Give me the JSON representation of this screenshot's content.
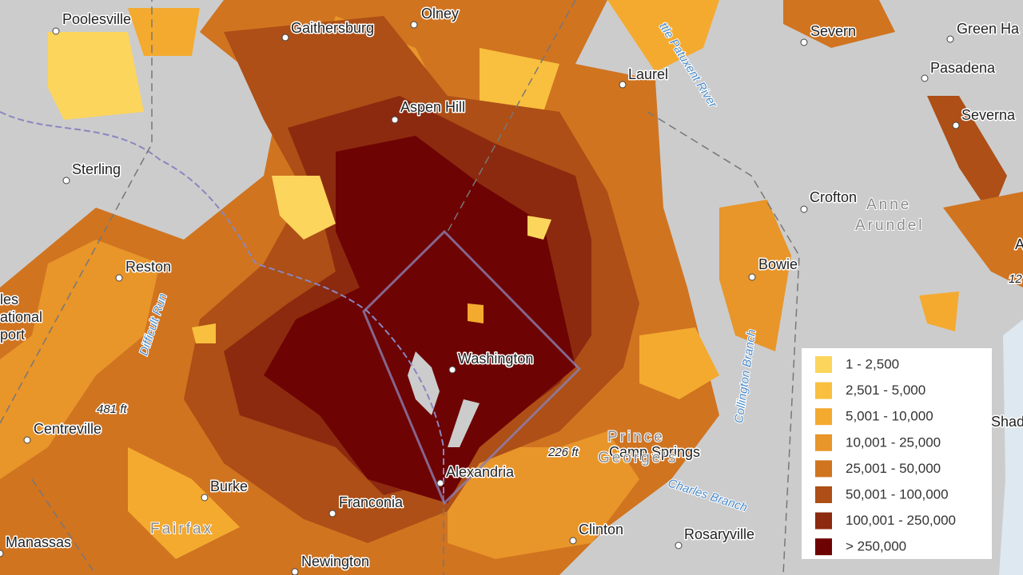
{
  "places": [
    {
      "label": "Poolesville",
      "kind": "place"
    },
    {
      "label": "Gaithersburg",
      "kind": "place"
    },
    {
      "label": "Olney",
      "kind": "place"
    },
    {
      "label": "Severn",
      "kind": "place"
    },
    {
      "label": "Green Ha",
      "kind": "place"
    },
    {
      "label": "Pasadena",
      "kind": "place"
    },
    {
      "label": "Laurel",
      "kind": "place"
    },
    {
      "label": "Aspen Hill",
      "kind": "place"
    },
    {
      "label": "Severna",
      "kind": "place"
    },
    {
      "label": "Sterling",
      "kind": "place"
    },
    {
      "label": "Crofton",
      "kind": "place"
    },
    {
      "label": "Bowie",
      "kind": "place"
    },
    {
      "label": "Reston",
      "kind": "place"
    },
    {
      "label": "Washington",
      "kind": "place"
    },
    {
      "label": "Centreville",
      "kind": "place"
    },
    {
      "label": "Camp Springs",
      "kind": "place"
    },
    {
      "label": "Alexandria",
      "kind": "place"
    },
    {
      "label": "Burke",
      "kind": "place"
    },
    {
      "label": "Franconia",
      "kind": "place"
    },
    {
      "label": "Clinton",
      "kind": "place"
    },
    {
      "label": "Rosaryville",
      "kind": "place"
    },
    {
      "label": "Manassas",
      "kind": "place"
    },
    {
      "label": "Newington",
      "kind": "place"
    },
    {
      "label": "Anne",
      "kind": "region"
    },
    {
      "label": "Arundel",
      "kind": "region"
    },
    {
      "label": "Prince",
      "kind": "region"
    },
    {
      "label": "George's",
      "kind": "region"
    },
    {
      "label": "Fairfax",
      "kind": "region"
    },
    {
      "label": "481 ft",
      "kind": "elev"
    },
    {
      "label": "226 ft",
      "kind": "elev"
    },
    {
      "label": "ttle Patuxent River",
      "kind": "water"
    },
    {
      "label": "Difficult Run",
      "kind": "water"
    },
    {
      "label": "Collington Branch",
      "kind": "water"
    },
    {
      "label": "Charles Branch",
      "kind": "water"
    },
    {
      "label": "les",
      "kind": "place"
    },
    {
      "label": "ational",
      "kind": "place"
    },
    {
      "label": "port",
      "kind": "place"
    },
    {
      "label": "Shad",
      "kind": "place"
    },
    {
      "label": "12",
      "kind": "elev"
    },
    {
      "label": "A",
      "kind": "place"
    }
  ],
  "legend": [
    {
      "label": "1 - 2,500",
      "color": "#fcd55c"
    },
    {
      "label": "2,501 - 5,000",
      "color": "#f9bf3e"
    },
    {
      "label": "5,001 - 10,000",
      "color": "#f4aa2f"
    },
    {
      "label": "10,001 - 25,000",
      "color": "#e8952a"
    },
    {
      "label": "25,001 - 50,000",
      "color": "#d07420"
    },
    {
      "label": "50,001 - 100,000",
      "color": "#ad4f16"
    },
    {
      "label": "100,001 - 250,000",
      "color": "#8c2a0f"
    },
    {
      "label": "> 250,000",
      "color": "#6e0303"
    }
  ]
}
